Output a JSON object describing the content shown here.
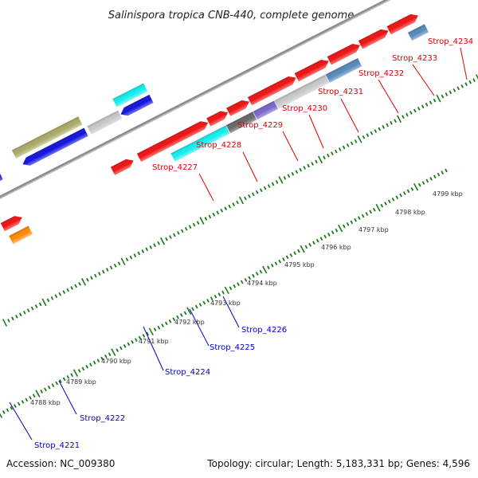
{
  "title": "Salinispora tropica CNB-440, complete genome",
  "footer": {
    "accession": "Accession: NC_009380",
    "summary": "Topology: circular; Length: 5,183,331 bp; Genes: 4,596"
  },
  "colors": {
    "forward_label": "#e00000",
    "reverse_label": "#0000cc",
    "backbone": "#8c8c8c",
    "tick": "#1a7a1a",
    "kbp_text": "#333333"
  },
  "kbp_labels": [
    "4788 kbp",
    "4789 kbp",
    "4790 kbp",
    "4791 kbp",
    "4792 kbp",
    "4793 kbp",
    "4794 kbp",
    "4795 kbp",
    "4796 kbp",
    "4797 kbp",
    "4798 kbp",
    "4799 kbp"
  ],
  "forward_gene_labels": [
    "Strop_4227",
    "Strop_4228",
    "Strop_4229",
    "Strop_4230",
    "Strop_4231",
    "Strop_4232",
    "Strop_4233",
    "Strop_4234"
  ],
  "reverse_gene_labels": [
    "Strop_4221",
    "Strop_4222",
    "Strop_4224",
    "Strop_4225",
    "Strop_4226"
  ],
  "features": [
    {
      "name": "cds-red",
      "color": "#ee1111"
    },
    {
      "name": "cds-blue",
      "color": "#1111dd"
    },
    {
      "name": "cds-cyan",
      "color": "#11eeee"
    },
    {
      "name": "cds-dark-gray",
      "color": "#666666"
    },
    {
      "name": "cds-purple",
      "color": "#7766cc"
    },
    {
      "name": "cds-light-gray",
      "color": "#c8c8c8"
    },
    {
      "name": "cds-steel-blue",
      "color": "#5588bb"
    },
    {
      "name": "cds-orange",
      "color": "#ff8800"
    },
    {
      "name": "cds-olive",
      "color": "#aaaa66"
    },
    {
      "name": "cds-pink",
      "color": "#ee8888"
    }
  ]
}
